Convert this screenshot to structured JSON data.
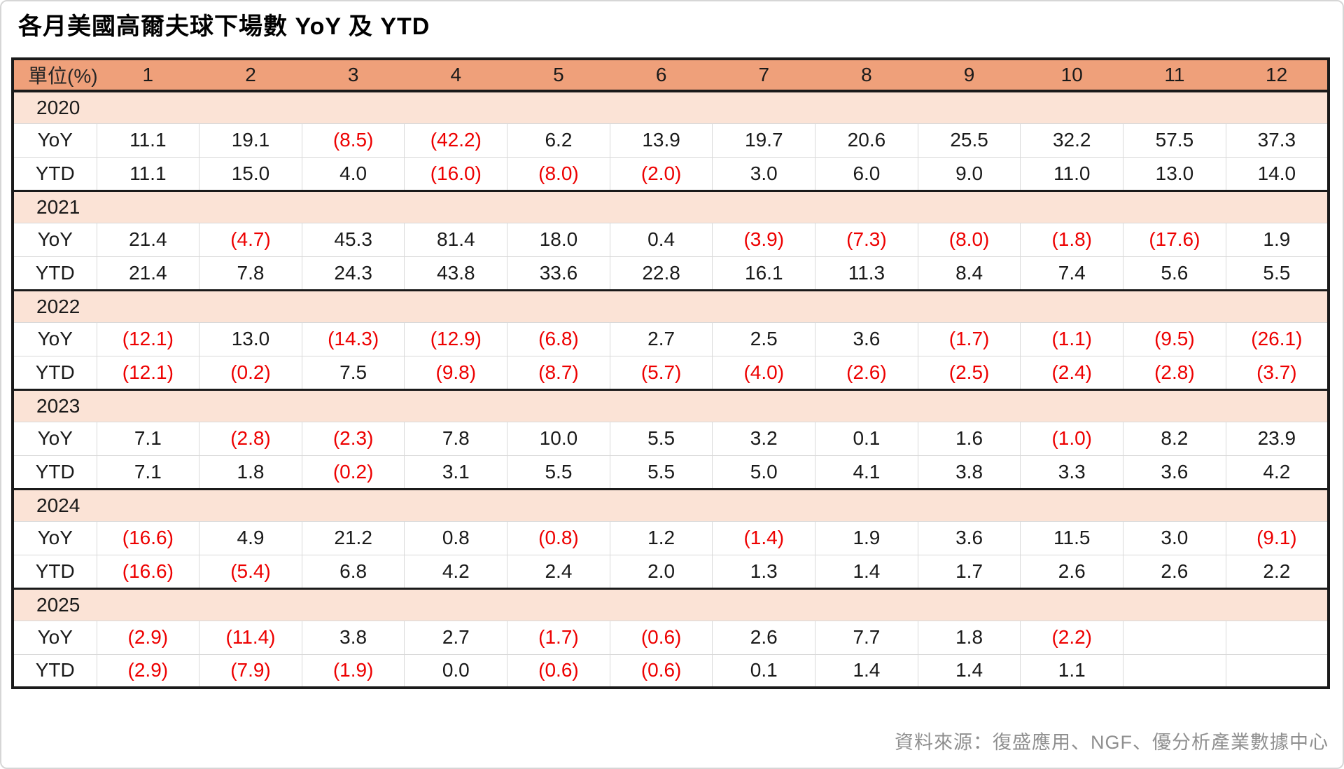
{
  "title": "各月美國高爾夫球下場數 YoY 及 YTD",
  "table": {
    "unit_label": "單位(%)",
    "months": [
      "1",
      "2",
      "3",
      "4",
      "5",
      "6",
      "7",
      "8",
      "9",
      "10",
      "11",
      "12"
    ],
    "row_labels": {
      "yoy": "YoY",
      "ytd": "YTD"
    },
    "sections": [
      {
        "year": "2020",
        "yoy": [
          "11.1",
          "19.1",
          "(8.5)",
          "(42.2)",
          "6.2",
          "13.9",
          "19.7",
          "20.6",
          "25.5",
          "32.2",
          "57.5",
          "37.3"
        ],
        "ytd": [
          "11.1",
          "15.0",
          "4.0",
          "(16.0)",
          "(8.0)",
          "(2.0)",
          "3.0",
          "6.0",
          "9.0",
          "11.0",
          "13.0",
          "14.0"
        ]
      },
      {
        "year": "2021",
        "yoy": [
          "21.4",
          "(4.7)",
          "45.3",
          "81.4",
          "18.0",
          "0.4",
          "(3.9)",
          "(7.3)",
          "(8.0)",
          "(1.8)",
          "(17.6)",
          "1.9"
        ],
        "ytd": [
          "21.4",
          "7.8",
          "24.3",
          "43.8",
          "33.6",
          "22.8",
          "16.1",
          "11.3",
          "8.4",
          "7.4",
          "5.6",
          "5.5"
        ]
      },
      {
        "year": "2022",
        "yoy": [
          "(12.1)",
          "13.0",
          "(14.3)",
          "(12.9)",
          "(6.8)",
          "2.7",
          "2.5",
          "3.6",
          "(1.7)",
          "(1.1)",
          "(9.5)",
          "(26.1)"
        ],
        "ytd": [
          "(12.1)",
          "(0.2)",
          "7.5",
          "(9.8)",
          "(8.7)",
          "(5.7)",
          "(4.0)",
          "(2.6)",
          "(2.5)",
          "(2.4)",
          "(2.8)",
          "(3.7)"
        ]
      },
      {
        "year": "2023",
        "yoy": [
          "7.1",
          "(2.8)",
          "(2.3)",
          "7.8",
          "10.0",
          "5.5",
          "3.2",
          "0.1",
          "1.6",
          "(1.0)",
          "8.2",
          "23.9"
        ],
        "ytd": [
          "7.1",
          "1.8",
          "(0.2)",
          "3.1",
          "5.5",
          "5.5",
          "5.0",
          "4.1",
          "3.8",
          "3.3",
          "3.6",
          "4.2"
        ]
      },
      {
        "year": "2024",
        "yoy": [
          "(16.6)",
          "4.9",
          "21.2",
          "0.8",
          "(0.8)",
          "1.2",
          "(1.4)",
          "1.9",
          "3.6",
          "11.5",
          "3.0",
          "(9.1)"
        ],
        "ytd": [
          "(16.6)",
          "(5.4)",
          "6.8",
          "4.2",
          "2.4",
          "2.0",
          "1.3",
          "1.4",
          "1.7",
          "2.6",
          "2.6",
          "2.2"
        ]
      },
      {
        "year": "2025",
        "yoy": [
          "(2.9)",
          "(11.4)",
          "3.8",
          "2.7",
          "(1.7)",
          "(0.6)",
          "2.6",
          "7.7",
          "1.8",
          "(2.2)",
          "",
          ""
        ],
        "ytd": [
          "(2.9)",
          "(7.9)",
          "(1.9)",
          "0.0",
          "(0.6)",
          "(0.6)",
          "0.1",
          "1.4",
          "1.4",
          "1.1",
          "",
          ""
        ]
      }
    ]
  },
  "footer": {
    "source": "資料來源：復盛應用、NGF、優分析產業數據中心"
  },
  "colors": {
    "header_bg": "#efa07a",
    "year_bg": "#fbe3d6",
    "negative": "#ed0000",
    "grid": "#d9d9d9",
    "border": "#1a1a1a",
    "footer_text": "#8f8f8f"
  },
  "chart_data": {
    "type": "table",
    "title": "各月美國高爾夫球下場數 YoY 及 YTD",
    "unit": "%",
    "categories": [
      "1",
      "2",
      "3",
      "4",
      "5",
      "6",
      "7",
      "8",
      "9",
      "10",
      "11",
      "12"
    ],
    "series": [
      {
        "name": "2020 YoY",
        "values": [
          11.1,
          19.1,
          -8.5,
          -42.2,
          6.2,
          13.9,
          19.7,
          20.6,
          25.5,
          32.2,
          57.5,
          37.3
        ]
      },
      {
        "name": "2020 YTD",
        "values": [
          11.1,
          15.0,
          4.0,
          -16.0,
          -8.0,
          -2.0,
          3.0,
          6.0,
          9.0,
          11.0,
          13.0,
          14.0
        ]
      },
      {
        "name": "2021 YoY",
        "values": [
          21.4,
          -4.7,
          45.3,
          81.4,
          18.0,
          0.4,
          -3.9,
          -7.3,
          -8.0,
          -1.8,
          -17.6,
          1.9
        ]
      },
      {
        "name": "2021 YTD",
        "values": [
          21.4,
          7.8,
          24.3,
          43.8,
          33.6,
          22.8,
          16.1,
          11.3,
          8.4,
          7.4,
          5.6,
          5.5
        ]
      },
      {
        "name": "2022 YoY",
        "values": [
          -12.1,
          13.0,
          -14.3,
          -12.9,
          -6.8,
          2.7,
          2.5,
          3.6,
          -1.7,
          -1.1,
          -9.5,
          -26.1
        ]
      },
      {
        "name": "2022 YTD",
        "values": [
          -12.1,
          -0.2,
          7.5,
          -9.8,
          -8.7,
          -5.7,
          -4.0,
          -2.6,
          -2.5,
          -2.4,
          -2.8,
          -3.7
        ]
      },
      {
        "name": "2023 YoY",
        "values": [
          7.1,
          -2.8,
          -2.3,
          7.8,
          10.0,
          5.5,
          3.2,
          0.1,
          1.6,
          -1.0,
          8.2,
          23.9
        ]
      },
      {
        "name": "2023 YTD",
        "values": [
          7.1,
          1.8,
          -0.2,
          3.1,
          5.5,
          5.5,
          5.0,
          4.1,
          3.8,
          3.3,
          3.6,
          4.2
        ]
      },
      {
        "name": "2024 YoY",
        "values": [
          -16.6,
          4.9,
          21.2,
          0.8,
          -0.8,
          1.2,
          -1.4,
          1.9,
          3.6,
          11.5,
          3.0,
          -9.1
        ]
      },
      {
        "name": "2024 YTD",
        "values": [
          -16.6,
          -5.4,
          6.8,
          4.2,
          2.4,
          2.0,
          1.3,
          1.4,
          1.7,
          2.6,
          2.6,
          2.2
        ]
      },
      {
        "name": "2025 YoY",
        "values": [
          -2.9,
          -11.4,
          3.8,
          2.7,
          -1.7,
          -0.6,
          2.6,
          7.7,
          1.8,
          -2.2,
          null,
          null
        ]
      },
      {
        "name": "2025 YTD",
        "values": [
          -2.9,
          -7.9,
          -1.9,
          0.0,
          -0.6,
          -0.6,
          0.1,
          1.4,
          1.4,
          1.1,
          null,
          null
        ]
      }
    ],
    "negative_format": "parentheses_red",
    "legend_position": "none",
    "source": "資料來源：復盛應用、NGF、優分析產業數據中心"
  }
}
